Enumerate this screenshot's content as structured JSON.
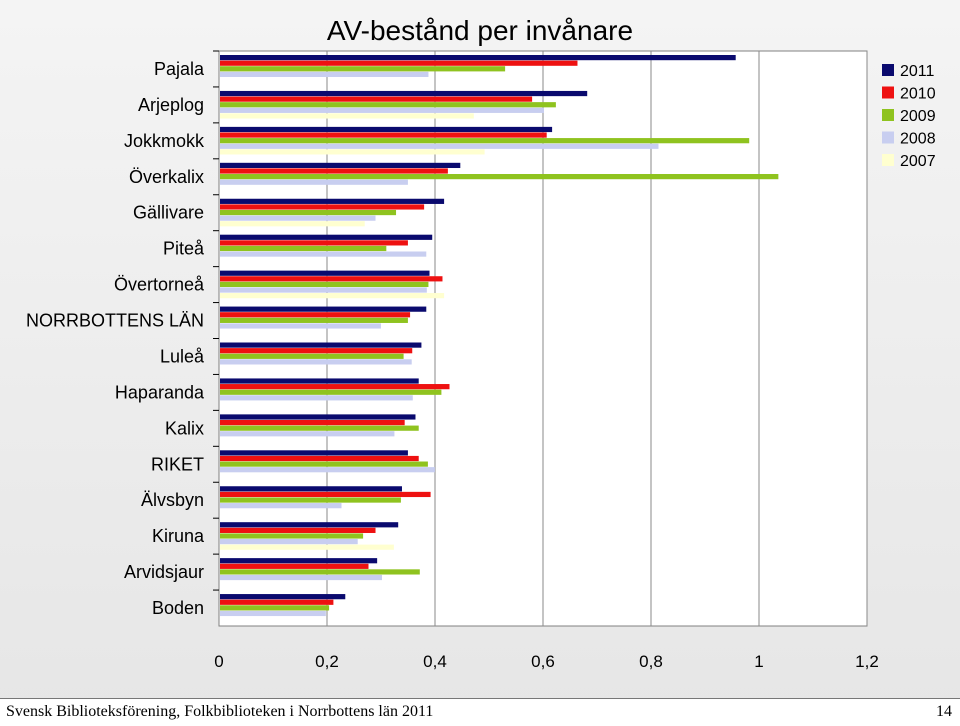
{
  "chart_data": {
    "type": "bar",
    "orientation": "horizontal",
    "title": "AV-bestånd per invånare",
    "categories": [
      "Pajala",
      "Arjeplog",
      "Jokkmokk",
      "Överkalix",
      "Gällivare",
      "Piteå",
      "Övertorneå",
      "NORRBOTTENS LÄN",
      "Luleå",
      "Haparanda",
      "Kalix",
      "RIKET",
      "Älvsbyn",
      "Kiruna",
      "Arvidsjaur",
      "Boden"
    ],
    "series": [
      {
        "name": "2011",
        "color": "#0a0a6e",
        "values": [
          0.955,
          0.68,
          0.615,
          0.445,
          0.415,
          0.393,
          0.388,
          0.382,
          0.373,
          0.368,
          0.362,
          0.348,
          0.337,
          0.33,
          0.291,
          0.232
        ]
      },
      {
        "name": "2010",
        "color": "#ee1111",
        "values": [
          0.662,
          0.578,
          0.605,
          0.422,
          0.378,
          0.348,
          0.412,
          0.352,
          0.356,
          0.425,
          0.342,
          0.368,
          0.39,
          0.288,
          0.275,
          0.21
        ]
      },
      {
        "name": "2009",
        "color": "#8fc31f",
        "values": [
          0.528,
          0.622,
          0.98,
          1.034,
          0.326,
          0.308,
          0.386,
          0.348,
          0.34,
          0.41,
          0.368,
          0.385,
          0.335,
          0.265,
          0.37,
          0.202
        ]
      },
      {
        "name": "2008",
        "color": "#c8cef0",
        "values": [
          0.386,
          0.6,
          0.812,
          0.348,
          0.288,
          0.382,
          0.383,
          0.298,
          0.355,
          0.357,
          0.323,
          0.398,
          0.225,
          0.255,
          0.3,
          0.196
        ]
      },
      {
        "name": "2007",
        "color": "#ffffd0",
        "values": [
          0.0,
          0.47,
          0.49,
          0.0,
          0.268,
          0.0,
          0.415,
          0.0,
          0.0,
          0.0,
          0.0,
          0.0,
          0.0,
          0.322,
          0.0,
          0.0
        ]
      }
    ],
    "xlim": [
      0,
      1.2
    ],
    "xticks": [
      "0",
      "0,2",
      "0,4",
      "0,6",
      "0,8",
      "1",
      "1,2"
    ],
    "grid": true,
    "legend": "top-right"
  },
  "footer": {
    "left": "Svensk Biblioteksförening, Folkbiblioteken i Norrbottens län 2011",
    "right": "14"
  }
}
